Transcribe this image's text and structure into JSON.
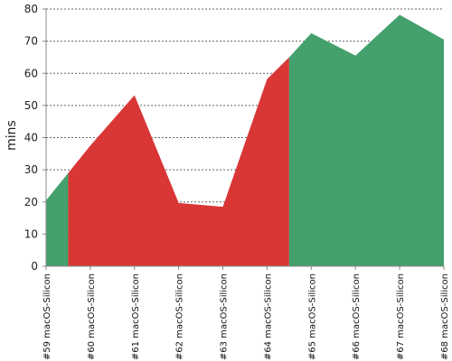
{
  "chart_data": {
    "type": "area",
    "categories": [
      "#59 macOS-Silicon",
      "#60 macOS-Silicon",
      "#61 macOS-Silicon",
      "#62 macOS-Silicon",
      "#63 macOS-Silicon",
      "#64 macOS-Silicon",
      "#65 macOS-Silicon",
      "#66 macOS-Silicon",
      "#67 macOS-Silicon",
      "#68 macOS-Silicon"
    ],
    "values": [
      20.5,
      37.5,
      53.2,
      19.7,
      18.5,
      58.2,
      72.5,
      65.5,
      78.2,
      70.5
    ],
    "status_colors": [
      "#44A06C",
      "#D93636",
      "#D93636",
      "#D93636",
      "#D93636",
      "#D93636",
      "#44A06C",
      "#44A06C",
      "#44A06C",
      "#44A06C"
    ],
    "boundaries": [
      {
        "x_index": 0.5,
        "value": 29.0
      },
      {
        "x_index": 5.5,
        "value": 65.0
      }
    ],
    "ylabel": "mins",
    "ylim": [
      0,
      80
    ],
    "yticks": [
      0,
      10,
      20,
      30,
      40,
      50,
      60,
      70,
      80
    ],
    "grid": true,
    "colors": {
      "pass": "#44A06C",
      "fail": "#D93636"
    }
  }
}
